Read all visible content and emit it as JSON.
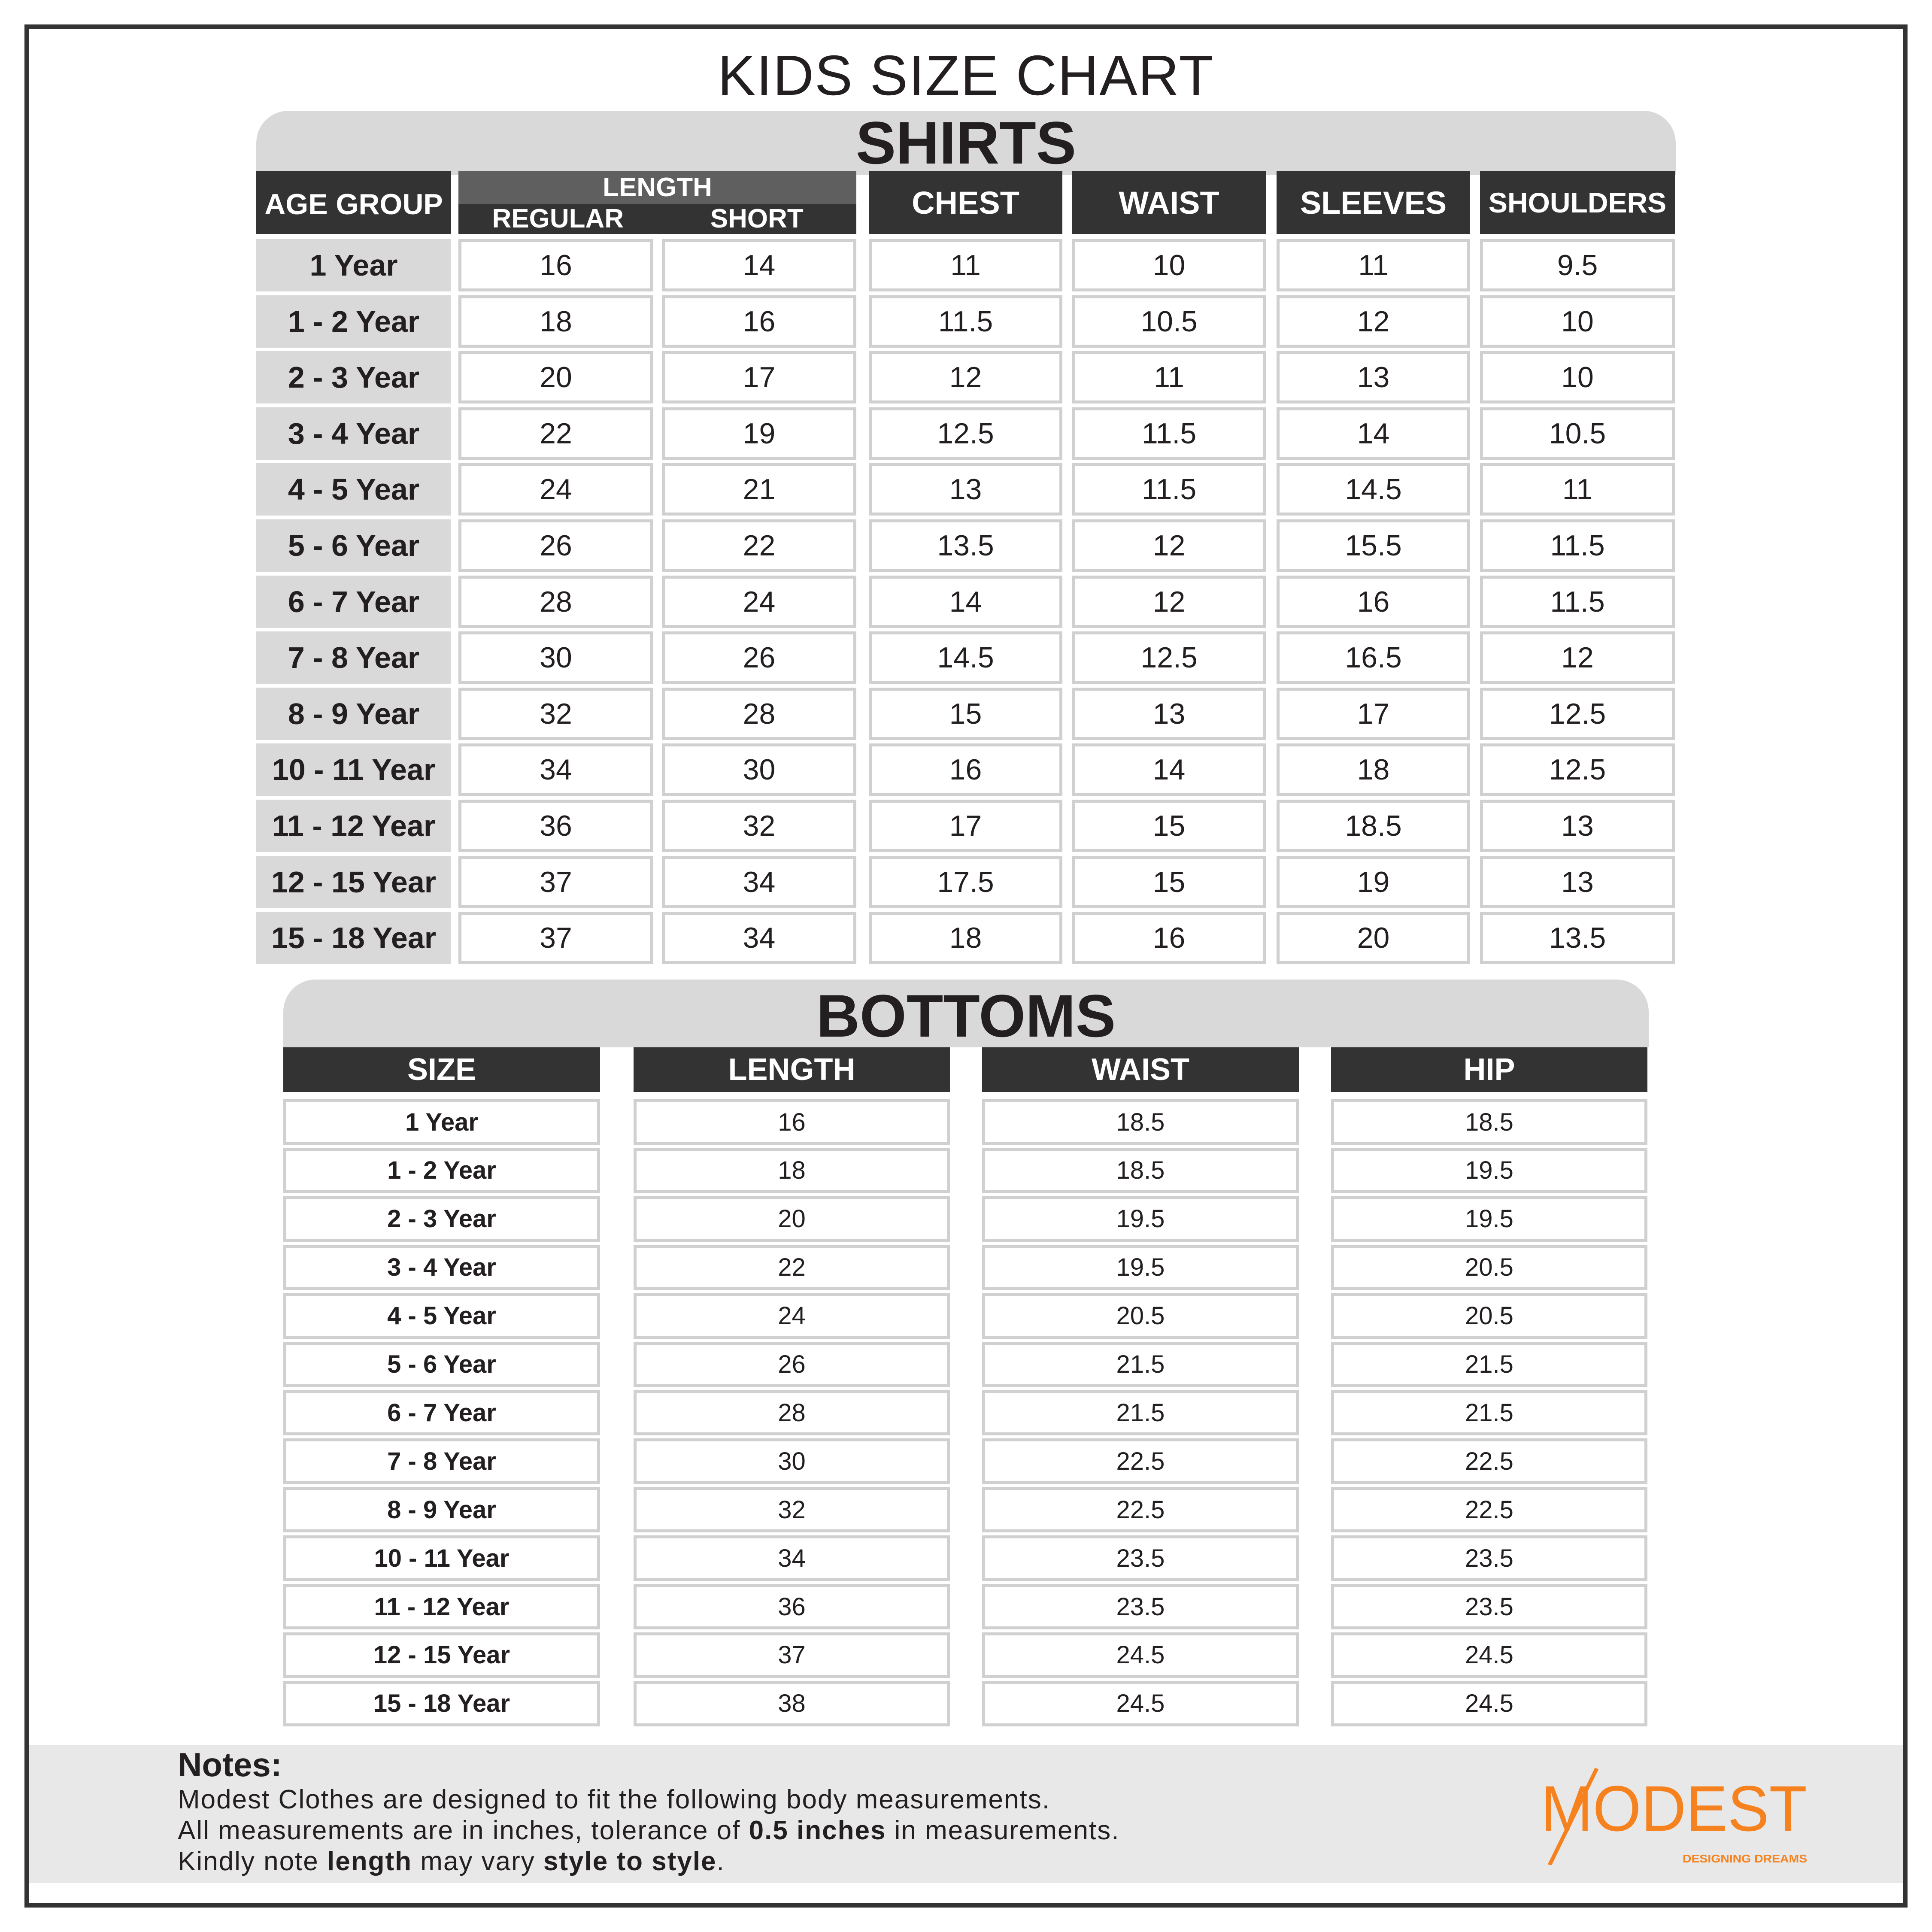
{
  "title": "KIDS SIZE CHART",
  "shirts": {
    "heading": "SHIRTS",
    "headers": {
      "age_group": "AGE GROUP",
      "length": "LENGTH",
      "regular": "REGULAR",
      "short": "SHORT",
      "chest": "CHEST",
      "waist": "WAIST",
      "sleeves": "SLEEVES",
      "shoulders": "SHOULDERS"
    },
    "rows": [
      [
        "1 Year",
        "16",
        "14",
        "11",
        "10",
        "11",
        "9.5"
      ],
      [
        "1 - 2 Year",
        "18",
        "16",
        "11.5",
        "10.5",
        "12",
        "10"
      ],
      [
        "2 - 3 Year",
        "20",
        "17",
        "12",
        "11",
        "13",
        "10"
      ],
      [
        "3 - 4 Year",
        "22",
        "19",
        "12.5",
        "11.5",
        "14",
        "10.5"
      ],
      [
        "4 - 5 Year",
        "24",
        "21",
        "13",
        "11.5",
        "14.5",
        "11"
      ],
      [
        "5 - 6 Year",
        "26",
        "22",
        "13.5",
        "12",
        "15.5",
        "11.5"
      ],
      [
        "6 - 7 Year",
        "28",
        "24",
        "14",
        "12",
        "16",
        "11.5"
      ],
      [
        "7 - 8 Year",
        "30",
        "26",
        "14.5",
        "12.5",
        "16.5",
        "12"
      ],
      [
        "8 - 9 Year",
        "32",
        "28",
        "15",
        "13",
        "17",
        "12.5"
      ],
      [
        "10 - 11 Year",
        "34",
        "30",
        "16",
        "14",
        "18",
        "12.5"
      ],
      [
        "11 - 12 Year",
        "36",
        "32",
        "17",
        "15",
        "18.5",
        "13"
      ],
      [
        "12 - 15 Year",
        "37",
        "34",
        "17.5",
        "15",
        "19",
        "13"
      ],
      [
        "15 - 18 Year",
        "37",
        "34",
        "18",
        "16",
        "20",
        "13.5"
      ]
    ]
  },
  "bottoms": {
    "heading": "BOTTOMS",
    "headers": [
      "SIZE",
      "LENGTH",
      "WAIST",
      "HIP"
    ],
    "rows": [
      [
        "1 Year",
        "16",
        "18.5",
        "18.5"
      ],
      [
        "1 - 2 Year",
        "18",
        "18.5",
        "19.5"
      ],
      [
        "2 - 3 Year",
        "20",
        "19.5",
        "19.5"
      ],
      [
        "3 - 4 Year",
        "22",
        "19.5",
        "20.5"
      ],
      [
        "4 - 5 Year",
        "24",
        "20.5",
        "20.5"
      ],
      [
        "5 - 6 Year",
        "26",
        "21.5",
        "21.5"
      ],
      [
        "6 - 7 Year",
        "28",
        "21.5",
        "21.5"
      ],
      [
        "7 - 8 Year",
        "30",
        "22.5",
        "22.5"
      ],
      [
        "8 - 9 Year",
        "32",
        "22.5",
        "22.5"
      ],
      [
        "10 - 11 Year",
        "34",
        "23.5",
        "23.5"
      ],
      [
        "11 - 12 Year",
        "36",
        "23.5",
        "23.5"
      ],
      [
        "12 - 15 Year",
        "37",
        "24.5",
        "24.5"
      ],
      [
        "15 - 18 Year",
        "38",
        "24.5",
        "24.5"
      ]
    ]
  },
  "notes": {
    "heading": "Notes:",
    "line1": "Modest Clothes are designed to fit the following body measurements.",
    "line2_a": "All measurements are in inches, tolerance of ",
    "line2_b": "0.5 inches",
    "line2_c": " in measurements.",
    "line3_a": "Kindly note ",
    "line3_b": "length",
    "line3_c": " may vary ",
    "line3_d": "style to style",
    "line3_e": "."
  },
  "logo": {
    "text": "MODEST",
    "tagline": "DESIGNING DREAMS",
    "color": "#f5821f"
  },
  "colors": {
    "header_bg": "#333333",
    "banner_bg": "#d9d9d9",
    "notes_bg": "#e8e8e8",
    "accent": "#f5821f"
  }
}
